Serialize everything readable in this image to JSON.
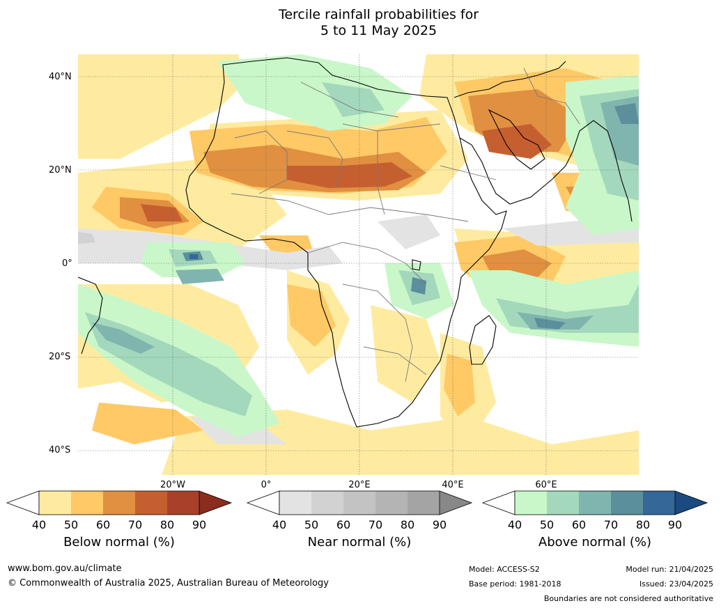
{
  "title": {
    "line1": "Tercile rainfall probabilities for",
    "line2": "5 to 11 May 2025"
  },
  "map": {
    "lat_labels": [
      "40°N",
      "20°N",
      "0°",
      "20°S",
      "40°S"
    ],
    "lon_labels": [
      "20°W",
      "0°",
      "20°E",
      "40°E",
      "60°E"
    ],
    "colors": {
      "below": [
        "#ffeba0",
        "#ffc966",
        "#e09040",
        "#c65f30",
        "#a9412a",
        "#8a2c1e"
      ],
      "near": [
        "#e3e3e3",
        "#d2d2d2",
        "#c3c3c3",
        "#b4b4b4",
        "#a4a4a4",
        "#888888"
      ],
      "above": [
        "#c9f7c9",
        "#a4d8bc",
        "#80b4ae",
        "#5b8f9c",
        "#356798",
        "#1a4a7f"
      ]
    }
  },
  "colorbars": [
    {
      "id": "below",
      "title": "Below normal (%)",
      "ticks": [
        "40",
        "50",
        "60",
        "70",
        "80",
        "90"
      ]
    },
    {
      "id": "near",
      "title": "Near normal (%)",
      "ticks": [
        "40",
        "50",
        "60",
        "70",
        "80",
        "90"
      ]
    },
    {
      "id": "above",
      "title": "Above normal (%)",
      "ticks": [
        "40",
        "50",
        "60",
        "70",
        "80",
        "90"
      ]
    }
  ],
  "footer": {
    "website": "www.bom.gov.au/climate",
    "copyright": "© Commonwealth of Australia 2025, Australian Bureau of Meteorology",
    "model": "Model: ACCESS-S2",
    "base_period": "Base period: 1981-2018",
    "model_run": "Model run: 21/04/2025",
    "issued": "Issued: 23/04/2025",
    "disclaimer": "Boundaries are not considered authoritative"
  }
}
